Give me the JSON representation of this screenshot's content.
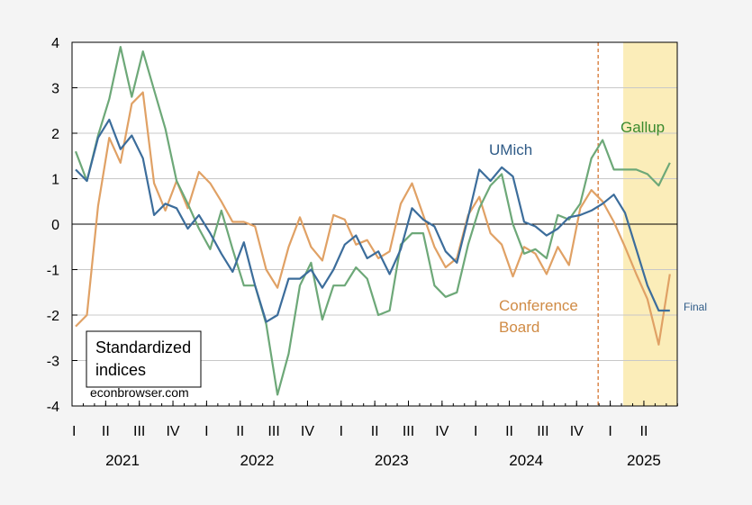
{
  "chart_data": {
    "type": "line",
    "ylim": [
      -4,
      4
    ],
    "yticks": [
      4,
      3,
      2,
      1,
      0,
      -1,
      -2,
      -3,
      -4
    ],
    "grid": true,
    "quarter_ticks": [
      "I",
      "II",
      "III",
      "IV",
      "I",
      "II",
      "III",
      "IV",
      "I",
      "II",
      "III",
      "IV",
      "I",
      "II",
      "III",
      "IV",
      "I",
      "II"
    ],
    "years": [
      "2021",
      "2022",
      "2023",
      "2024",
      "2025"
    ],
    "x_start": "2021-01",
    "vline_date": "2024-12",
    "shade_start": "2025-02",
    "legend_box": [
      "Standardized",
      "indices"
    ],
    "credit": "econbrowser.com",
    "annotation": "Final",
    "series": [
      {
        "name": "UMich",
        "color": "#3c6d9b",
        "values": [
          1.2,
          0.95,
          1.9,
          2.3,
          1.65,
          1.95,
          1.45,
          0.2,
          0.45,
          0.35,
          -0.1,
          0.2,
          -0.2,
          -0.65,
          -1.05,
          -0.4,
          -1.35,
          -2.15,
          -2.0,
          -1.2,
          -1.2,
          -1.0,
          -1.4,
          -1.0,
          -0.45,
          -0.25,
          -0.75,
          -0.6,
          -1.1,
          -0.55,
          0.35,
          0.1,
          -0.05,
          -0.6,
          -0.85,
          0.15,
          1.2,
          0.95,
          1.25,
          1.05,
          0.05,
          -0.05,
          -0.25,
          -0.1,
          0.15,
          0.2,
          0.3,
          0.45,
          0.65,
          0.25,
          -0.55,
          -1.35,
          -1.9,
          -1.9
        ]
      },
      {
        "name": "Gallup",
        "color": "#6da878",
        "values": [
          1.6,
          0.95,
          1.95,
          2.75,
          3.9,
          2.8,
          3.8,
          2.95,
          2.1,
          0.95,
          0.45,
          -0.1,
          -0.55,
          0.3,
          -0.55,
          -1.35,
          -1.35,
          -2.2,
          -3.75,
          -2.85,
          -1.35,
          -0.85,
          -2.1,
          -1.35,
          -1.35,
          -0.95,
          -1.2,
          -2.0,
          -1.9,
          -0.45,
          -0.2,
          -0.2,
          -1.35,
          -1.6,
          -1.5,
          -0.45,
          0.35,
          0.85,
          1.1,
          0.0,
          -0.65,
          -0.55,
          -0.75,
          0.2,
          0.1,
          0.45,
          1.45,
          1.85,
          1.2,
          1.2,
          1.2,
          1.1,
          0.85,
          1.35
        ]
      },
      {
        "name": "Conference Board",
        "color": "#e0a165",
        "values": [
          -2.25,
          -2.0,
          0.4,
          1.9,
          1.35,
          2.65,
          2.9,
          0.9,
          0.3,
          0.95,
          0.35,
          1.15,
          0.9,
          0.5,
          0.05,
          0.05,
          -0.05,
          -1.0,
          -1.4,
          -0.5,
          0.15,
          -0.5,
          -0.8,
          0.2,
          0.1,
          -0.45,
          -0.35,
          -0.75,
          -0.6,
          0.45,
          0.9,
          0.2,
          -0.5,
          -0.95,
          -0.75,
          0.2,
          0.6,
          -0.2,
          -0.45,
          -1.15,
          -0.5,
          -0.65,
          -1.1,
          -0.5,
          -0.9,
          0.35,
          0.75,
          0.5,
          0.05,
          -0.5,
          -1.1,
          -1.65,
          -2.65,
          -1.1
        ]
      }
    ]
  }
}
